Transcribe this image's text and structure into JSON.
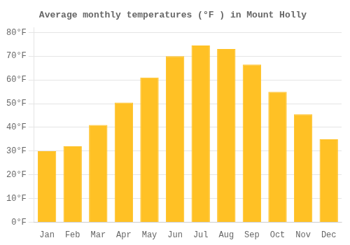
{
  "chart_data": {
    "type": "bar",
    "title": "Average monthly temperatures (°F ) in Mount Holly",
    "categories": [
      "Jan",
      "Feb",
      "Mar",
      "Apr",
      "May",
      "Jun",
      "Jul",
      "Aug",
      "Sep",
      "Oct",
      "Nov",
      "Dec"
    ],
    "values": [
      30,
      32,
      41,
      50.5,
      61,
      70,
      74.5,
      73,
      66.5,
      55,
      45.5,
      35
    ],
    "color": "#FFC125",
    "ylim": [
      0,
      82
    ],
    "yticks": [
      {
        "value": 0,
        "label": "0°F"
      },
      {
        "value": 10,
        "label": "10°F"
      },
      {
        "value": 20,
        "label": "20°F"
      },
      {
        "value": 30,
        "label": "30°F"
      },
      {
        "value": 40,
        "label": "40°F"
      },
      {
        "value": 50,
        "label": "50°F"
      },
      {
        "value": 60,
        "label": "60°F"
      },
      {
        "value": 70,
        "label": "70°F"
      },
      {
        "value": 80,
        "label": "80°F"
      }
    ],
    "grid": true
  }
}
